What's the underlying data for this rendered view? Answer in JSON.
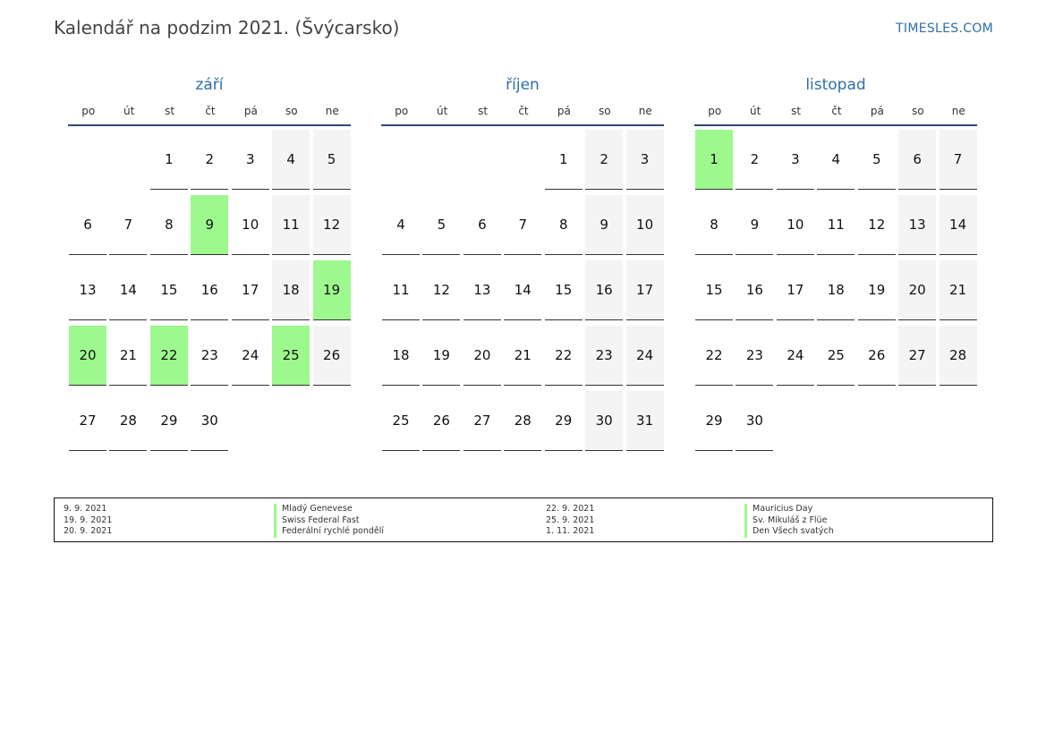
{
  "header": {
    "title": "Kalendář na podzim 2021. (Švýcarsko)",
    "brand": "TIMESLES.COM"
  },
  "weekdays": [
    "po",
    "út",
    "st",
    "čt",
    "pá",
    "so",
    "ne"
  ],
  "colors": {
    "holiday": "#9df98e",
    "weekend": "#f4f4f4",
    "accent": "#2f6fa6"
  },
  "months": [
    {
      "name": "září",
      "start_weekday": 2,
      "days": 30,
      "holidays": [
        9,
        19,
        20,
        22,
        25
      ]
    },
    {
      "name": "říjen",
      "start_weekday": 4,
      "days": 31,
      "holidays": []
    },
    {
      "name": "listopad",
      "start_weekday": 0,
      "days": 30,
      "holidays": [
        1
      ]
    }
  ],
  "legend": [
    {
      "date": "9. 9. 2021",
      "name": "Mladý Genevese"
    },
    {
      "date": "19. 9. 2021",
      "name": "Swiss Federal Fast"
    },
    {
      "date": "20. 9. 2021",
      "name": "Federální rychlé pondělí"
    },
    {
      "date": "22. 9. 2021",
      "name": "Mauricius Day"
    },
    {
      "date": "25. 9. 2021",
      "name": "Sv. Mikuláš z Flüe"
    },
    {
      "date": "1. 11. 2021",
      "name": "Den Všech svatých"
    }
  ]
}
